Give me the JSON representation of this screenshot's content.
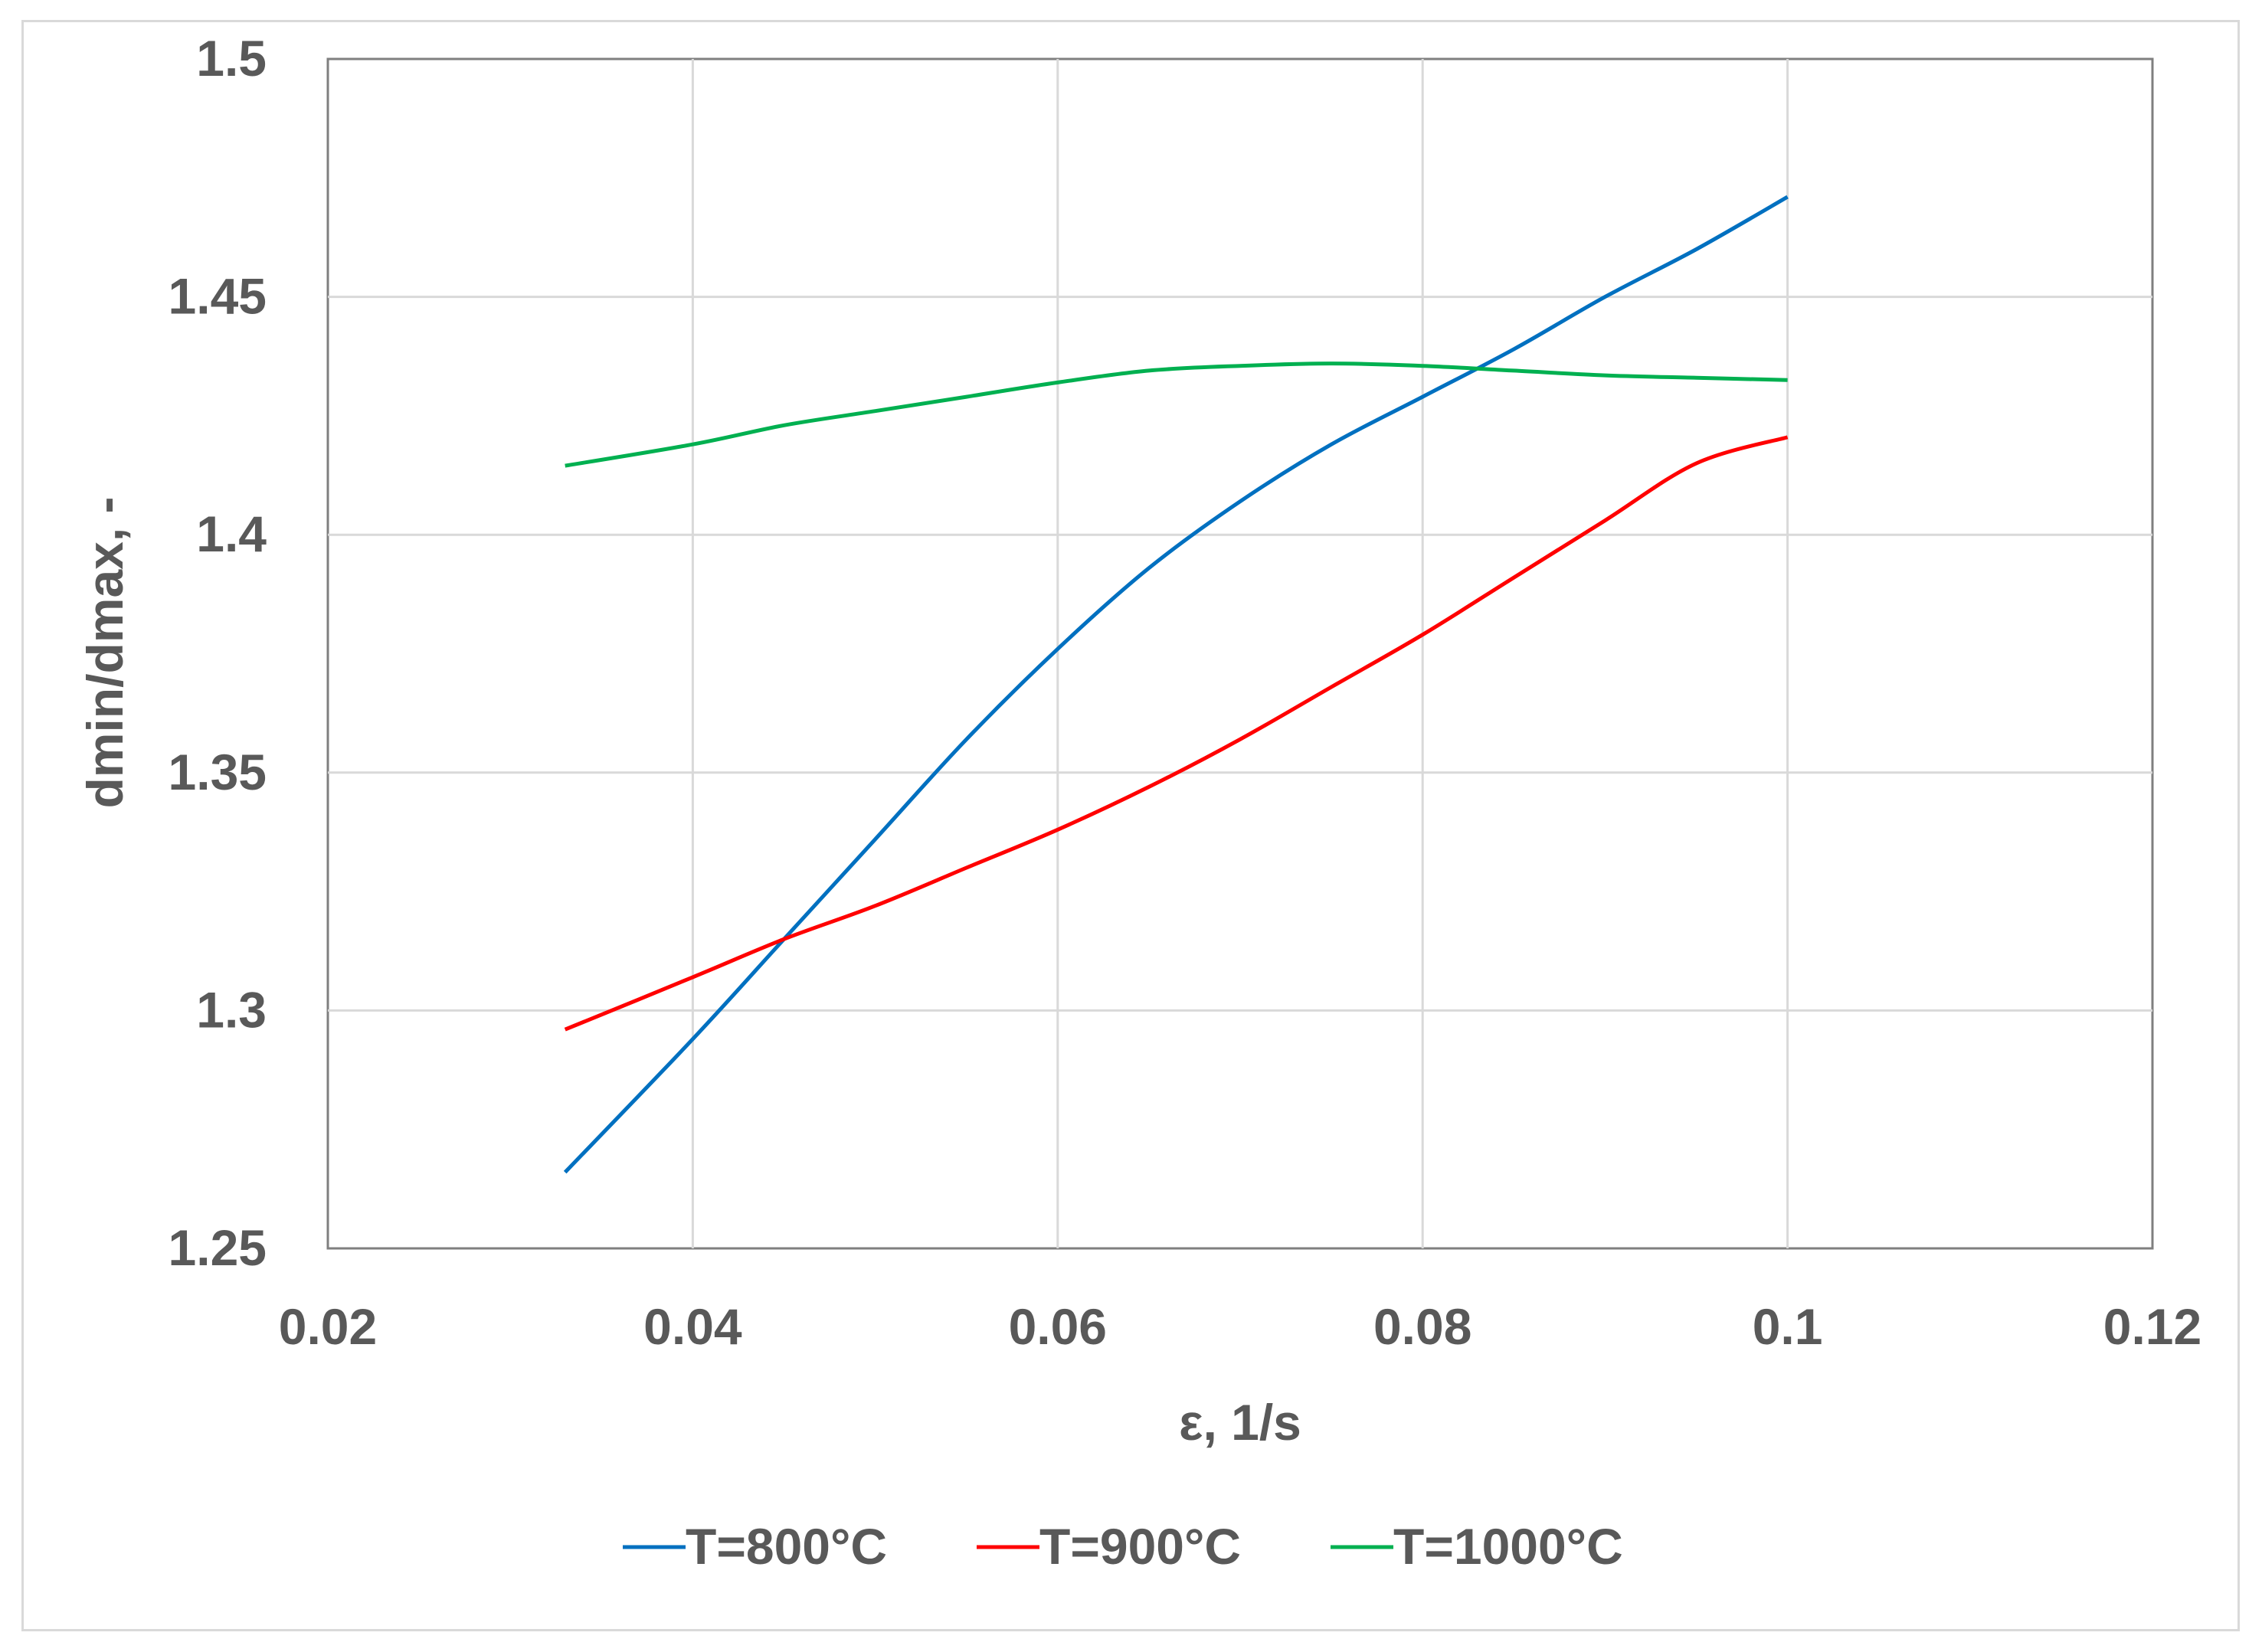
{
  "chart_data": {
    "type": "line",
    "title": "",
    "xlabel": "ε, 1/s",
    "ylabel": "dmin/dmax, -",
    "xlim": [
      0.02,
      0.12
    ],
    "ylim": [
      1.25,
      1.5
    ],
    "xticks": [
      0.02,
      0.04,
      0.06,
      0.08,
      0.1,
      0.12
    ],
    "yticks": [
      1.25,
      1.3,
      1.35,
      1.4,
      1.45,
      1.5
    ],
    "xtick_labels": [
      "0.02",
      "0.04",
      "0.06",
      "0.08",
      "0.1",
      "0.12"
    ],
    "ytick_labels": [
      "1.25",
      "1.3",
      "1.35",
      "1.4",
      "1.45",
      "1.5"
    ],
    "grid": true,
    "legend_position": "bottom",
    "series": [
      {
        "name": "T=800°C",
        "color": "#0070c0",
        "x": [
          0.033,
          0.04,
          0.045,
          0.05,
          0.055,
          0.06,
          0.065,
          0.07,
          0.075,
          0.08,
          0.085,
          0.09,
          0.095,
          0.1
        ],
        "y": [
          1.266,
          1.294,
          1.315,
          1.336,
          1.357,
          1.376,
          1.393,
          1.407,
          1.419,
          1.429,
          1.439,
          1.45,
          1.46,
          1.471
        ]
      },
      {
        "name": "T=900°C",
        "color": "#ff0000",
        "x": [
          0.033,
          0.04,
          0.045,
          0.05,
          0.055,
          0.06,
          0.065,
          0.07,
          0.075,
          0.08,
          0.085,
          0.09,
          0.095,
          0.1
        ],
        "y": [
          1.296,
          1.307,
          1.315,
          1.322,
          1.33,
          1.338,
          1.347,
          1.357,
          1.368,
          1.379,
          1.391,
          1.403,
          1.415,
          1.4205
        ]
      },
      {
        "name": "T=1000°C",
        "color": "#00b050",
        "x": [
          0.033,
          0.04,
          0.045,
          0.05,
          0.055,
          0.06,
          0.065,
          0.07,
          0.075,
          0.08,
          0.085,
          0.09,
          0.095,
          0.1
        ],
        "y": [
          1.4145,
          1.419,
          1.423,
          1.426,
          1.429,
          1.432,
          1.4345,
          1.4355,
          1.436,
          1.4355,
          1.4345,
          1.4335,
          1.433,
          1.4325
        ]
      }
    ]
  }
}
